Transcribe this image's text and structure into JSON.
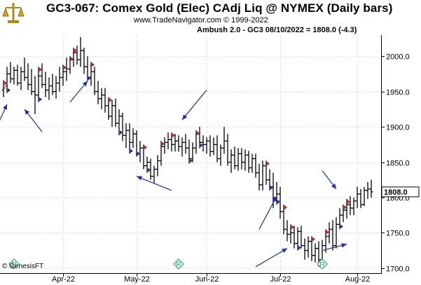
{
  "header": {
    "title": "GC3-067:  Comex Gold (Elec) CAdj Liq @ NYMEX  (Daily bars)",
    "subtitle": "www.TradeNavigator.com © 1999-2022",
    "study_label": "Ambush 2.0 - GC3   08/10/2022 = 1808.0 (-4.3)"
  },
  "footer": {
    "credit": "© GenesisFT"
  },
  "colors": {
    "bar": "#000000",
    "arrow": "#1a2bc8",
    "signal_red": "#d02020",
    "signal_blue": "#1a2bc8",
    "grid": "#c8c8c8",
    "marker": "#2aa88a"
  },
  "chart_data": {
    "type": "ohlc",
    "ylim": [
      1693,
      2030
    ],
    "y_ticks": [
      "1700.0",
      "1750.0",
      "1800.0",
      "1850.0",
      "1900.0",
      "1950.0",
      "2000.0"
    ],
    "y_tick_values": [
      1700,
      1750,
      1800,
      1850,
      1900,
      1950,
      2000
    ],
    "x_tick_labels": [
      "Apr-22",
      "May-22",
      "Jun-22",
      "Jul-22",
      "Aug-22"
    ],
    "x_tick_index": [
      17,
      38,
      58,
      79,
      101
    ],
    "last_price_label": "1808.0",
    "last_price": 1808.0,
    "bars": [
      [
        1952,
        1966,
        1942,
        1955
      ],
      [
        1958,
        1985,
        1948,
        1975
      ],
      [
        1975,
        1992,
        1962,
        1968
      ],
      [
        1968,
        1985,
        1960,
        1980
      ],
      [
        1980,
        1988,
        1958,
        1962
      ],
      [
        1962,
        1985,
        1952,
        1978
      ],
      [
        1978,
        1998,
        1965,
        1970
      ],
      [
        1970,
        1990,
        1952,
        1960
      ],
      [
        1960,
        1982,
        1945,
        1950
      ],
      [
        1950,
        1972,
        1918,
        1945
      ],
      [
        1945,
        1985,
        1935,
        1972
      ],
      [
        1972,
        1990,
        1955,
        1960
      ],
      [
        1960,
        1978,
        1942,
        1952
      ],
      [
        1952,
        1970,
        1938,
        1958
      ],
      [
        1958,
        1975,
        1945,
        1950
      ],
      [
        1950,
        1972,
        1940,
        1962
      ],
      [
        1962,
        1985,
        1950,
        1970
      ],
      [
        1970,
        1988,
        1958,
        1978
      ],
      [
        1978,
        1998,
        1965,
        1982
      ],
      [
        1982,
        2000,
        1975,
        1995
      ],
      [
        1995,
        2012,
        1985,
        2005
      ],
      [
        2005,
        2015,
        1988,
        1995
      ],
      [
        1995,
        2027,
        1985,
        2008
      ],
      [
        2008,
        2012,
        1975,
        1985
      ],
      [
        1985,
        2000,
        1965,
        1970
      ],
      [
        1970,
        1992,
        1958,
        1978
      ],
      [
        1978,
        1985,
        1945,
        1950
      ],
      [
        1950,
        1965,
        1932,
        1940
      ],
      [
        1940,
        1955,
        1925,
        1945
      ],
      [
        1945,
        1955,
        1920,
        1930
      ],
      [
        1930,
        1942,
        1910,
        1915
      ],
      [
        1915,
        1938,
        1900,
        1930
      ],
      [
        1930,
        1940,
        1900,
        1905
      ],
      [
        1905,
        1925,
        1888,
        1915
      ],
      [
        1915,
        1920,
        1880,
        1888
      ],
      [
        1888,
        1905,
        1870,
        1895
      ],
      [
        1895,
        1905,
        1862,
        1878
      ],
      [
        1878,
        1898,
        1870,
        1890
      ],
      [
        1890,
        1895,
        1858,
        1862
      ],
      [
        1862,
        1880,
        1850,
        1870
      ],
      [
        1870,
        1875,
        1840,
        1845
      ],
      [
        1845,
        1858,
        1835,
        1850
      ],
      [
        1850,
        1855,
        1825,
        1830
      ],
      [
        1830,
        1845,
        1820,
        1840
      ],
      [
        1840,
        1860,
        1830,
        1852
      ],
      [
        1852,
        1880,
        1845,
        1872
      ],
      [
        1872,
        1885,
        1862,
        1878
      ],
      [
        1878,
        1892,
        1868,
        1882
      ],
      [
        1882,
        1892,
        1865,
        1875
      ],
      [
        1875,
        1890,
        1865,
        1880
      ],
      [
        1880,
        1888,
        1865,
        1872
      ],
      [
        1872,
        1885,
        1858,
        1878
      ],
      [
        1878,
        1890,
        1862,
        1870
      ],
      [
        1870,
        1882,
        1848,
        1855
      ],
      [
        1855,
        1878,
        1850,
        1870
      ],
      [
        1870,
        1895,
        1862,
        1890
      ],
      [
        1890,
        1900,
        1870,
        1878
      ],
      [
        1878,
        1888,
        1865,
        1875
      ],
      [
        1875,
        1885,
        1862,
        1880
      ],
      [
        1880,
        1888,
        1858,
        1865
      ],
      [
        1865,
        1885,
        1860,
        1875
      ],
      [
        1875,
        1888,
        1850,
        1855
      ],
      [
        1855,
        1875,
        1845,
        1870
      ],
      [
        1870,
        1900,
        1862,
        1880
      ],
      [
        1880,
        1890,
        1845,
        1850
      ],
      [
        1850,
        1868,
        1835,
        1860
      ],
      [
        1860,
        1872,
        1840,
        1845
      ],
      [
        1845,
        1870,
        1838,
        1862
      ],
      [
        1862,
        1870,
        1840,
        1850
      ],
      [
        1850,
        1868,
        1838,
        1860
      ],
      [
        1860,
        1866,
        1835,
        1842
      ],
      [
        1842,
        1862,
        1835,
        1855
      ],
      [
        1855,
        1862,
        1828,
        1835
      ],
      [
        1835,
        1848,
        1810,
        1818
      ],
      [
        1818,
        1852,
        1810,
        1845
      ],
      [
        1845,
        1852,
        1818,
        1825
      ],
      [
        1825,
        1840,
        1810,
        1815
      ],
      [
        1815,
        1835,
        1785,
        1800
      ],
      [
        1800,
        1822,
        1790,
        1805
      ],
      [
        1805,
        1815,
        1770,
        1780
      ],
      [
        1780,
        1790,
        1748,
        1755
      ],
      [
        1755,
        1768,
        1738,
        1748
      ],
      [
        1748,
        1762,
        1735,
        1750
      ],
      [
        1750,
        1760,
        1728,
        1735
      ],
      [
        1735,
        1758,
        1725,
        1752
      ],
      [
        1752,
        1760,
        1728,
        1732
      ],
      [
        1732,
        1742,
        1712,
        1725
      ],
      [
        1725,
        1745,
        1715,
        1738
      ],
      [
        1738,
        1745,
        1710,
        1718
      ],
      [
        1718,
        1735,
        1708,
        1728
      ],
      [
        1728,
        1738,
        1702,
        1712
      ],
      [
        1712,
        1740,
        1700,
        1732
      ],
      [
        1732,
        1755,
        1722,
        1745
      ],
      [
        1745,
        1765,
        1735,
        1755
      ],
      [
        1755,
        1768,
        1725,
        1732
      ],
      [
        1732,
        1772,
        1728,
        1762
      ],
      [
        1762,
        1785,
        1755,
        1775
      ],
      [
        1775,
        1790,
        1765,
        1782
      ],
      [
        1782,
        1798,
        1770,
        1790
      ],
      [
        1790,
        1802,
        1775,
        1785
      ],
      [
        1785,
        1800,
        1775,
        1795
      ],
      [
        1795,
        1815,
        1785,
        1805
      ],
      [
        1805,
        1812,
        1785,
        1790
      ],
      [
        1790,
        1815,
        1788,
        1810
      ],
      [
        1810,
        1822,
        1798,
        1812
      ],
      [
        1812,
        1825,
        1800,
        1808
      ]
    ],
    "signals": [
      {
        "i": 0,
        "kind": "red",
        "side": "above"
      },
      {
        "i": 1,
        "kind": "blue",
        "side": "below"
      },
      {
        "i": 10,
        "kind": "blue",
        "side": "below"
      },
      {
        "i": 10,
        "kind": "red",
        "side": "above"
      },
      {
        "i": 17,
        "kind": "red",
        "side": "above"
      },
      {
        "i": 19,
        "kind": "red",
        "side": "above"
      },
      {
        "i": 20,
        "kind": "red",
        "side": "above"
      },
      {
        "i": 24,
        "kind": "blue",
        "side": "below"
      },
      {
        "i": 25,
        "kind": "red",
        "side": "above"
      },
      {
        "i": 30,
        "kind": "red",
        "side": "above"
      },
      {
        "i": 33,
        "kind": "blue",
        "side": "below"
      },
      {
        "i": 36,
        "kind": "blue",
        "side": "below"
      },
      {
        "i": 38,
        "kind": "blue",
        "side": "below"
      },
      {
        "i": 40,
        "kind": "red",
        "side": "above"
      },
      {
        "i": 41,
        "kind": "blue",
        "side": "below"
      },
      {
        "i": 45,
        "kind": "red",
        "side": "above"
      },
      {
        "i": 48,
        "kind": "red",
        "side": "above"
      },
      {
        "i": 53,
        "kind": "blue",
        "side": "below"
      },
      {
        "i": 55,
        "kind": "red",
        "side": "above"
      },
      {
        "i": 56,
        "kind": "blue",
        "side": "below"
      },
      {
        "i": 75,
        "kind": "red",
        "side": "above"
      },
      {
        "i": 76,
        "kind": "blue",
        "side": "below"
      },
      {
        "i": 78,
        "kind": "blue",
        "side": "below"
      },
      {
        "i": 80,
        "kind": "red",
        "side": "above"
      },
      {
        "i": 82,
        "kind": "red",
        "side": "above"
      },
      {
        "i": 84,
        "kind": "blue",
        "side": "below"
      },
      {
        "i": 88,
        "kind": "red",
        "side": "above"
      },
      {
        "i": 90,
        "kind": "blue",
        "side": "below"
      },
      {
        "i": 92,
        "kind": "red",
        "side": "above"
      },
      {
        "i": 96,
        "kind": "blue",
        "side": "below"
      },
      {
        "i": 97,
        "kind": "red",
        "side": "above"
      },
      {
        "i": 98,
        "kind": "red",
        "side": "above"
      }
    ],
    "markers": [
      {
        "i": 3,
        "label": "R"
      },
      {
        "i": 50,
        "label": "R"
      },
      {
        "i": 91,
        "label": "R"
      }
    ],
    "arrows": [
      {
        "from": [
          -3,
          1888
        ],
        "to": [
          1,
          1932
        ]
      },
      {
        "from": [
          11,
          1893
        ],
        "to": [
          6,
          1925
        ]
      },
      {
        "from": [
          19,
          1935
        ],
        "to": [
          24,
          1965
        ]
      },
      {
        "from": [
          48,
          1810
        ],
        "to": [
          38,
          1830
        ]
      },
      {
        "from": [
          58,
          1952
        ],
        "to": [
          51,
          1910
        ]
      },
      {
        "from": [
          73,
          1755
        ],
        "to": [
          78,
          1802
        ]
      },
      {
        "from": [
          72,
          1702
        ],
        "to": [
          81,
          1728
        ]
      },
      {
        "from": [
          91,
          1725
        ],
        "to": [
          98,
          1734
        ]
      },
      {
        "from": [
          91,
          1838
        ],
        "to": [
          95,
          1812
        ]
      }
    ]
  }
}
